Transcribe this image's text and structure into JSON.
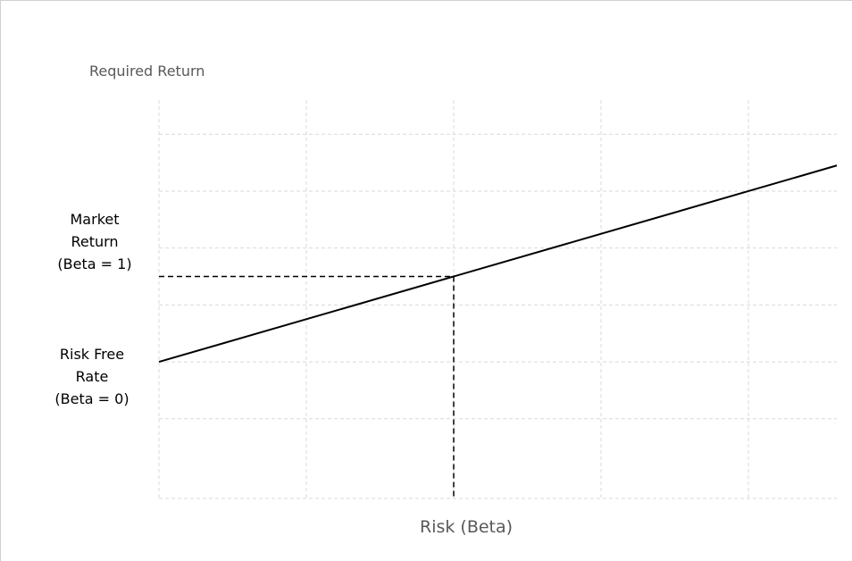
{
  "chart_data": {
    "type": "line",
    "title": "",
    "ylabel": "Required Return",
    "xlabel": "Risk (Beta)",
    "x": [
      0,
      2.3
    ],
    "series": [
      {
        "values": [
          1,
          4.45
        ]
      }
    ],
    "xlim": [
      0,
      2.3
    ],
    "ylim": [
      -1.4,
      5.6
    ],
    "grid": true,
    "annotations": [
      {
        "lines": [
          "Market",
          "Return",
          "(Beta = 1)"
        ],
        "y": 2.5
      },
      {
        "lines": [
          "Risk Free",
          "Rate",
          "(Beta = 0)"
        ],
        "y": 1
      }
    ],
    "reference_point": {
      "x": 1,
      "y": 2.5,
      "style": "dashed"
    },
    "colors": {
      "line": "#000000",
      "grid": "#d9d9d9",
      "axis_text": "#595959"
    }
  }
}
